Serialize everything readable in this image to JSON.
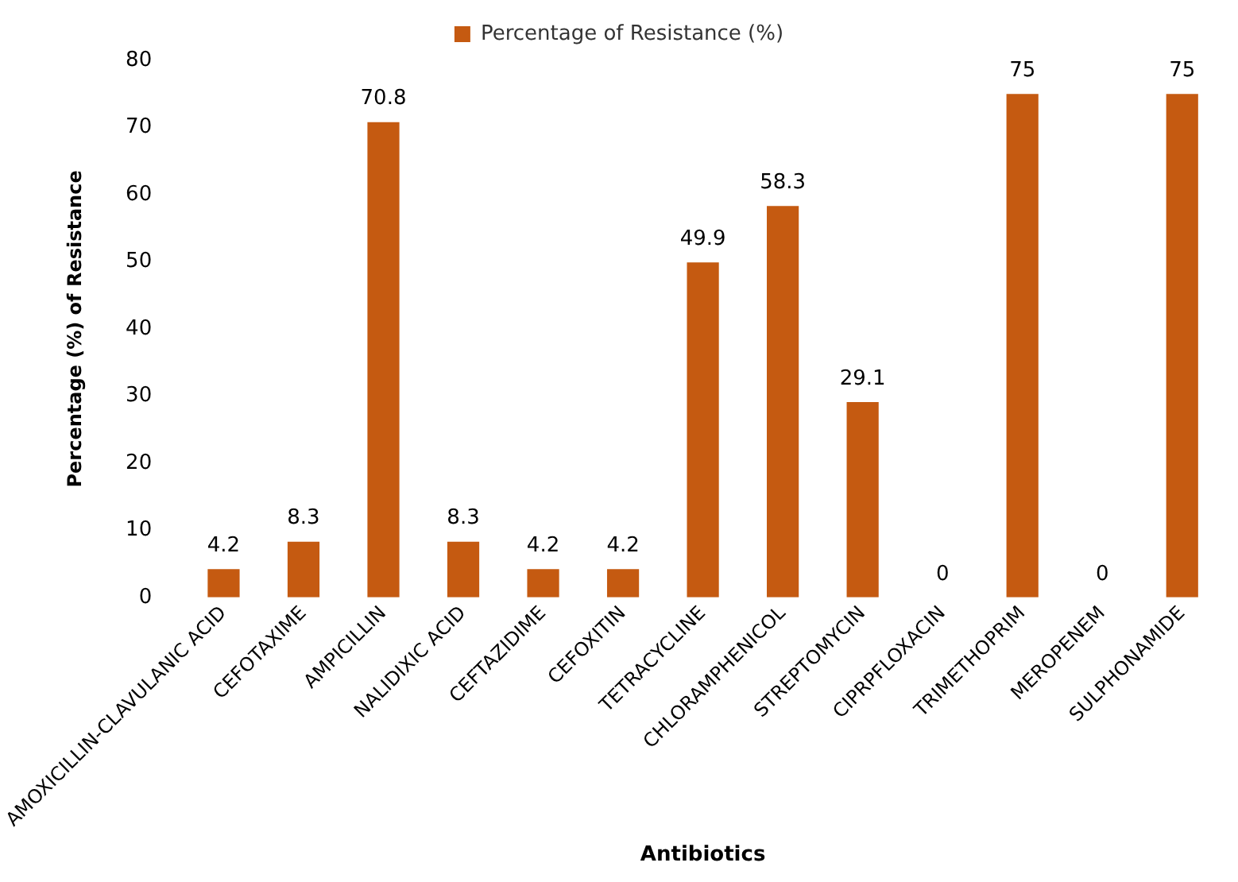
{
  "chart_data": {
    "type": "bar",
    "xlabel": "Antibiotics",
    "ylabel": "Percentage (%) of Resistance",
    "categories": [
      "AMOXICILLIN-CLAVULANIC ACID",
      "CEFOTAXIME",
      "AMPICILLIN",
      "NALIDIXIC ACID",
      "CEFTAZIDIME",
      "CEFOXITIN",
      "TETRACYCLINE",
      "CHLORAMPHENICOL",
      "STREPTOMYCIN",
      "CIPRPFLOXACIN",
      "TRIMETHOPRIM",
      "MEROPENEM",
      "SULPHONAMIDE"
    ],
    "series": [
      {
        "name": "Percentage of Resistance (%)",
        "color": "#c55a11",
        "values": [
          4.2,
          8.3,
          70.8,
          8.3,
          4.2,
          4.2,
          49.9,
          58.3,
          29.1,
          0,
          75,
          0,
          75
        ]
      }
    ],
    "ylim": [
      0,
      80
    ],
    "yticks": [
      0,
      10,
      20,
      30,
      40,
      50,
      60,
      70,
      80
    ],
    "grid": false,
    "legend": "top",
    "data_labels": true
  }
}
